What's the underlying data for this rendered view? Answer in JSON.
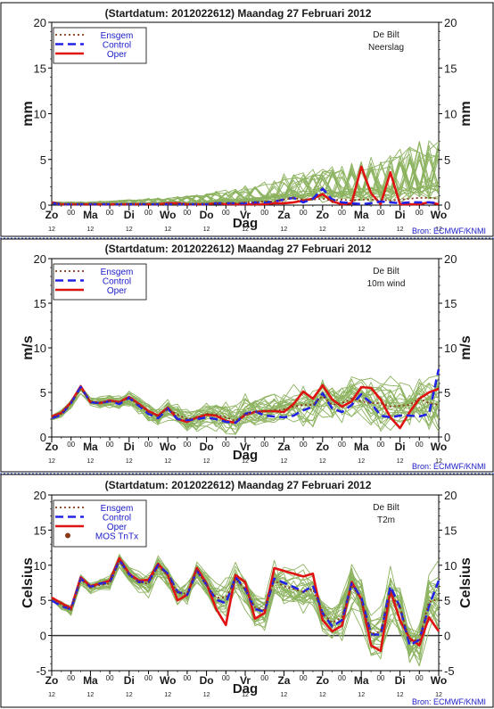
{
  "colors": {
    "ensemble": "#8db360",
    "ensgem": "#8b3a1a",
    "control": "#2323e6",
    "oper": "#e01212",
    "title": "#1a1a1a",
    "legend_text": "#1a1ac8",
    "source_text": "#1a1ac8",
    "frame": "#000000",
    "divider": "#3355cc",
    "mos": "#8b3a1a"
  },
  "days": [
    "Zo",
    "Ma",
    "Di",
    "Wo",
    "Do",
    "Vr",
    "Za",
    "Zo",
    "Ma",
    "Di",
    "Wo"
  ],
  "mid_marker": "00",
  "hour_label": "12",
  "xlabel": "Dag",
  "source": "Bron: ECMWF/KNMI",
  "chart_data": [
    {
      "type": "line",
      "title": "(Startdatum: 2012022612)   Maandag   27 Februari  2012",
      "station": "De Bilt",
      "variable": "Neerslag",
      "ylabel": "mm",
      "ylim": [
        0,
        20
      ],
      "yticks": [
        0,
        5,
        10,
        15,
        20
      ],
      "legend": [
        "Ensgem",
        "Control",
        "Oper"
      ],
      "x_step_hours": 12,
      "series": [
        {
          "name": "Ensgem",
          "values": [
            0.2,
            0.1,
            0.1,
            0.1,
            0.1,
            0.1,
            0.1,
            0.1,
            0.1,
            0.1,
            0.1,
            0.1,
            0.1,
            0.1,
            0.1,
            0.1,
            0.1,
            0.2,
            0.2,
            0.2,
            0.3,
            0.3,
            0.4,
            0.4,
            0.6,
            0.8,
            0.6,
            0.6,
            0.7,
            0.5,
            0.6,
            0.5,
            0.6,
            0.6,
            0.6,
            0.5,
            0.6,
            0.7,
            0.8,
            0.8,
            0.7
          ]
        },
        {
          "name": "Control",
          "values": [
            0.2,
            0.1,
            0.1,
            0.1,
            0.1,
            0.1,
            0.1,
            0.1,
            0.1,
            0.1,
            0.1,
            0.1,
            0.1,
            0.1,
            0.1,
            0.1,
            0.1,
            0.2,
            0.2,
            0.2,
            0.2,
            0.3,
            0.3,
            0.4,
            0.6,
            0.8,
            0.3,
            0.7,
            1.8,
            0.6,
            0.3,
            0.2,
            0.1,
            0.2,
            0.4,
            0.3,
            0.2,
            0.3,
            0.3,
            0.3,
            0.2
          ]
        },
        {
          "name": "Oper",
          "values": [
            0.3,
            0.1,
            0.1,
            0.1,
            0.1,
            0.1,
            0.1,
            0.1,
            0.1,
            0.1,
            0.1,
            0.1,
            0.2,
            0.2,
            0.1,
            0.1,
            0.1,
            0.2,
            0.1,
            0.1,
            0.1,
            0.1,
            0.1,
            0.2,
            0.2,
            0.3,
            0.5,
            0.7,
            1.2,
            0.4,
            0.1,
            0.2,
            4.2,
            1.3,
            0.1,
            3.6,
            0.1,
            0.1,
            0.1,
            0.3,
            0.1
          ]
        }
      ]
    },
    {
      "type": "line",
      "title": "(Startdatum: 2012022612)   Maandag   27 Februari  2012",
      "station": "De Bilt",
      "variable": "10m wind",
      "ylabel": "m/s",
      "ylim": [
        0,
        20
      ],
      "yticks": [
        0,
        5,
        10,
        15,
        20
      ],
      "legend": [
        "Ensgem",
        "Control",
        "Oper"
      ],
      "x_step_hours": 12,
      "series": [
        {
          "name": "Ensgem",
          "values": [
            2.2,
            2.6,
            3.8,
            5.4,
            4.0,
            3.9,
            4.0,
            3.9,
            4.4,
            3.6,
            2.8,
            2.3,
            3.2,
            2.5,
            2.0,
            2.2,
            2.6,
            2.5,
            2.2,
            1.8,
            2.6,
            2.8,
            2.9,
            3.0,
            3.1,
            3.4,
            3.6,
            3.6,
            4.6,
            3.6,
            3.8,
            4.3,
            4.0,
            3.8,
            3.8,
            3.4,
            3.5,
            3.6,
            4.3,
            3.8,
            3.6
          ]
        },
        {
          "name": "Control",
          "values": [
            2.1,
            2.5,
            3.8,
            5.6,
            3.9,
            3.8,
            4.0,
            3.7,
            4.4,
            3.5,
            2.6,
            2.1,
            3.2,
            2.0,
            1.9,
            2.0,
            2.2,
            2.0,
            1.7,
            1.6,
            2.6,
            2.9,
            2.4,
            2.3,
            2.2,
            2.4,
            3.0,
            3.4,
            4.9,
            3.2,
            2.8,
            3.6,
            4.8,
            3.8,
            2.4,
            2.2,
            2.4,
            2.4,
            2.3,
            2.6,
            7.6
          ]
        },
        {
          "name": "Oper",
          "values": [
            2.3,
            2.7,
            3.9,
            5.7,
            3.9,
            3.8,
            4.1,
            3.9,
            4.5,
            3.7,
            2.9,
            2.4,
            3.3,
            2.0,
            1.7,
            2.2,
            2.5,
            2.4,
            1.8,
            1.6,
            2.5,
            2.8,
            2.9,
            2.9,
            2.8,
            3.7,
            5.1,
            4.3,
            5.8,
            4.2,
            3.4,
            4.0,
            5.6,
            5.5,
            4.2,
            2.2,
            1.0,
            2.8,
            4.3,
            5.0,
            5.4
          ]
        }
      ]
    },
    {
      "type": "line",
      "title": "(Startdatum: 2012022612)   Maandag   27 Februari  2012",
      "station": "De Bilt",
      "variable": "T2m",
      "ylabel": "Celsius",
      "ylim": [
        -5,
        20
      ],
      "yticks": [
        -5,
        0,
        5,
        10,
        15,
        20
      ],
      "legend": [
        "Ensgem",
        "Control",
        "Oper",
        "MOS TnTx"
      ],
      "x_step_hours": 12,
      "series": [
        {
          "name": "Ensgem",
          "values": [
            5.2,
            4.4,
            3.6,
            8.0,
            6.8,
            7.2,
            7.4,
            10.6,
            8.6,
            7.6,
            7.4,
            9.8,
            8.6,
            6.0,
            6.0,
            9.2,
            7.2,
            5.4,
            5.4,
            8.0,
            6.6,
            4.0,
            3.6,
            7.8,
            7.0,
            6.6,
            6.2,
            6.6,
            3.2,
            1.8,
            2.6,
            7.2,
            5.0,
            0.2,
            0.6,
            6.2,
            4.0,
            -0.8,
            -0.6,
            4.8,
            5.2
          ]
        },
        {
          "name": "Control",
          "values": [
            5.0,
            4.2,
            3.7,
            8.1,
            6.9,
            7.4,
            7.5,
            10.7,
            8.7,
            7.6,
            7.6,
            10.0,
            8.8,
            6.2,
            5.8,
            9.2,
            7.2,
            5.1,
            4.6,
            8.3,
            6.6,
            3.8,
            3.4,
            8.1,
            7.5,
            6.9,
            6.2,
            7.1,
            3.2,
            1.3,
            2.2,
            7.4,
            5.4,
            0.2,
            0.1,
            7.0,
            4.0,
            -1.4,
            -0.6,
            4.2,
            7.8
          ]
        },
        {
          "name": "Oper",
          "values": [
            5.4,
            4.6,
            3.9,
            8.3,
            7.0,
            7.4,
            7.8,
            11.0,
            8.8,
            7.8,
            7.9,
            10.2,
            8.6,
            5.0,
            5.8,
            9.6,
            7.4,
            3.8,
            1.5,
            8.6,
            7.6,
            2.4,
            3.2,
            9.6,
            9.2,
            8.8,
            8.4,
            8.8,
            2.2,
            0.6,
            1.4,
            7.6,
            5.2,
            -1.4,
            -2.2,
            6.4,
            2.2,
            -0.4,
            -1.4,
            2.6,
            0.6
          ]
        }
      ]
    }
  ]
}
